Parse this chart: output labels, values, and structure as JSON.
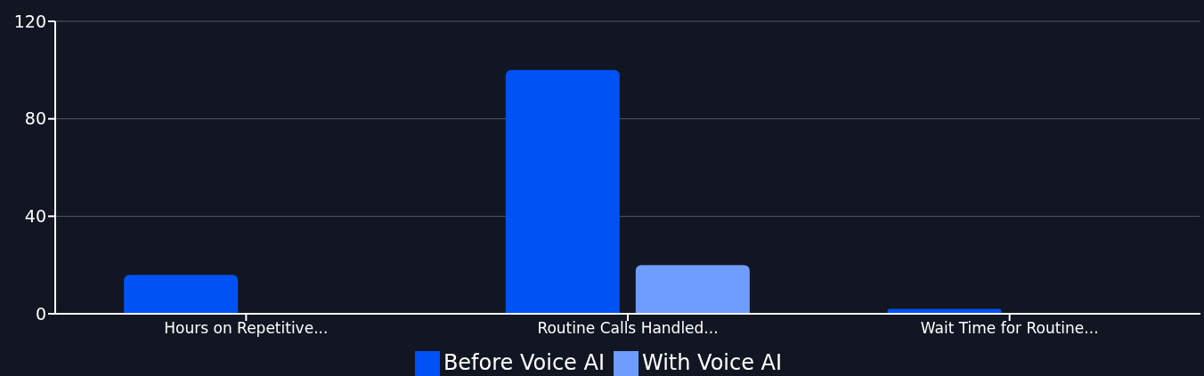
{
  "chart_data": {
    "type": "bar",
    "categories": [
      "Hours on Repetitive...",
      "Routine Calls Handled...",
      "Wait Time for Routine..."
    ],
    "series": [
      {
        "name": "Before Voice AI",
        "color": "#0052f5",
        "values": [
          16,
          100,
          2
        ]
      },
      {
        "name": "With Voice AI",
        "color": "#6f9dff",
        "values": [
          0,
          20,
          0
        ]
      }
    ],
    "ylim": [
      0,
      120
    ],
    "yticks": [
      0,
      40,
      80,
      120
    ],
    "grid": "y",
    "legend": "bottom"
  }
}
